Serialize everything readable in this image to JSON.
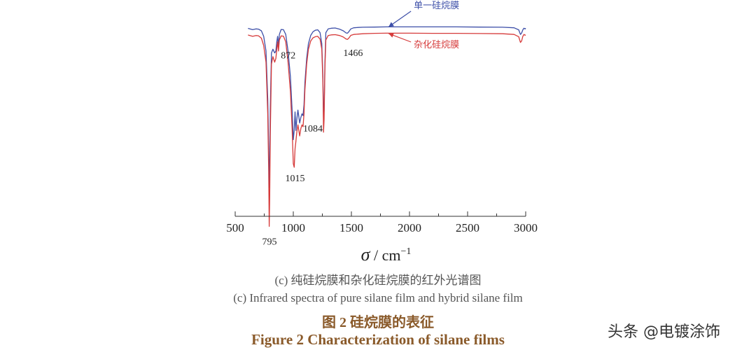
{
  "chart_data": {
    "type": "line",
    "title": "",
    "xlabel": "σ / cm⁻¹",
    "xlabel_parts": {
      "sym": "σ",
      "mid": " / cm",
      "sup": "−1"
    },
    "ylabel": "",
    "xlim": [
      500,
      3000
    ],
    "xticks": [
      500,
      1000,
      1500,
      2000,
      2500,
      3000
    ],
    "ylim": [
      0,
      100
    ],
    "grid": false,
    "series": [
      {
        "name": "单一硅烷膜",
        "color": "#3d4fa8",
        "x": [
          610,
          650,
          680,
          700,
          725,
          745,
          765,
          780,
          788,
          793,
          797,
          802,
          812,
          825,
          840,
          850,
          858,
          865,
          872,
          880,
          895,
          915,
          935,
          955,
          975,
          990,
          1000,
          1008,
          1015,
          1022,
          1030,
          1040,
          1055,
          1065,
          1075,
          1084,
          1092,
          1100,
          1115,
          1130,
          1150,
          1170,
          1190,
          1210,
          1230,
          1245,
          1255,
          1260,
          1265,
          1272,
          1280,
          1300,
          1330,
          1360,
          1400,
          1430,
          1455,
          1466,
          1478,
          1495,
          1520,
          1560,
          1600,
          1700,
          1800,
          1900,
          2000,
          2200,
          2400,
          2600,
          2800,
          2900,
          2940,
          2955,
          2965,
          2975,
          2985,
          2995,
          3000
        ],
        "y": [
          96.3,
          95.6,
          96,
          95.9,
          95,
          92,
          84,
          58,
          32,
          10,
          23,
          52,
          83,
          85,
          83,
          84,
          89,
          92,
          87,
          93,
          95.7,
          95.6,
          93,
          84,
          70,
          52,
          36,
          41,
          51,
          41,
          47,
          52,
          45,
          48,
          50,
          49,
          55,
          67,
          80,
          88,
          92.5,
          94.5,
          95.3,
          95.5,
          94,
          88,
          70,
          46,
          52,
          78,
          94,
          96,
          96.4,
          96.5,
          95.8,
          95,
          93.8,
          93.7,
          94.5,
          96,
          96.6,
          96.8,
          96.9,
          97,
          97.1,
          97.1,
          97.1,
          97.1,
          97.1,
          97,
          96.9,
          96.6,
          95.5,
          93,
          93.8,
          95.5,
          96.4,
          96,
          96.4
        ]
      },
      {
        "name": "杂化硅烷膜",
        "color": "#d63a3a",
        "x": [
          610,
          650,
          680,
          700,
          725,
          745,
          765,
          780,
          788,
          793,
          797,
          802,
          812,
          825,
          840,
          850,
          858,
          865,
          872,
          880,
          895,
          915,
          935,
          955,
          975,
          990,
          1000,
          1008,
          1015,
          1022,
          1030,
          1040,
          1055,
          1065,
          1075,
          1084,
          1092,
          1100,
          1115,
          1130,
          1150,
          1170,
          1190,
          1210,
          1230,
          1245,
          1255,
          1260,
          1265,
          1272,
          1280,
          1300,
          1330,
          1360,
          1400,
          1430,
          1455,
          1466,
          1478,
          1495,
          1520,
          1560,
          1600,
          1700,
          1800,
          1900,
          2000,
          2200,
          2400,
          2600,
          2800,
          2900,
          2940,
          2955,
          2965,
          2975,
          2985,
          2995,
          3000
        ],
        "y": [
          92.7,
          92,
          92.4,
          92.3,
          91,
          87,
          78,
          50,
          20,
          -11,
          5,
          38,
          77,
          81,
          78,
          80,
          85,
          89,
          84,
          90,
          92.2,
          92.1,
          89,
          78,
          62,
          42,
          23,
          21,
          31,
          35,
          40,
          44,
          38,
          42,
          44,
          43,
          50,
          63,
          77,
          85,
          89.5,
          91.2,
          91.8,
          92,
          90.5,
          85,
          67,
          40,
          47,
          75,
          90,
          92.4,
          92.8,
          92.9,
          92.4,
          91.6,
          90.5,
          90.3,
          91,
          92.5,
          93,
          93.2,
          93.4,
          93.6,
          93.7,
          93.7,
          93.7,
          93.6,
          93.6,
          93.5,
          93.4,
          93,
          91.8,
          88.7,
          89.5,
          92,
          93,
          92.6,
          92.8
        ]
      }
    ],
    "annotations": [
      {
        "text": "795",
        "x": 795,
        "y": 12
      },
      {
        "text": "872",
        "x": 872,
        "y": 83
      },
      {
        "text": "1015",
        "x": 1015,
        "y": 34
      },
      {
        "text": "1084",
        "x": 1084,
        "y": 51
      },
      {
        "text": "1466",
        "x": 1466,
        "y": 88.6
      }
    ],
    "legend_callouts": [
      {
        "text": "单一硅烷膜",
        "series": 0,
        "x": 1880,
        "placement": "upper"
      },
      {
        "text": "杂化硅烷膜",
        "series": 1,
        "x": 1880,
        "placement": "lower"
      }
    ]
  },
  "caption": {
    "sub_cn": "(c)  纯硅烷膜和杂化硅烷膜的红外光谱图",
    "sub_en": "(c) Infrared spectra of pure silane film and hybrid silane film",
    "figure_cn": "图 2    硅烷膜的表征",
    "figure_en": "Figure 2    Characterization of silane films"
  },
  "watermark": "头条 @电镀涂饰"
}
